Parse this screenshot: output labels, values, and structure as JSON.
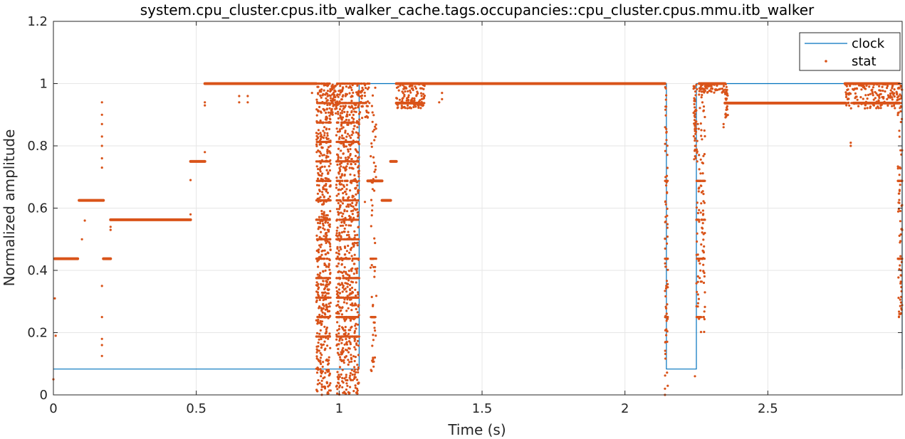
{
  "chart_data": {
    "type": "line",
    "title": "system.cpu_cluster.cpus.itb_walker_cache.tags.occupancies::cpu_cluster.cpus.mmu.itb_walker",
    "xlabel": "Time (s)",
    "ylabel": "Normalized amplitude",
    "xlim": [
      0,
      2.97
    ],
    "ylim": [
      0,
      1.2
    ],
    "xticks": [
      0,
      0.5,
      1,
      1.5,
      2,
      2.5
    ],
    "xtick_labels": [
      "0",
      "0.5",
      "1",
      "1.5",
      "2",
      "2.5"
    ],
    "yticks": [
      0,
      0.2,
      0.4,
      0.6,
      0.8,
      1,
      1.2
    ],
    "ytick_labels": [
      "0",
      "0.2",
      "0.4",
      "0.6",
      "0.8",
      "1",
      "1.2"
    ],
    "grid": true,
    "legend_position": "top-right",
    "colors": {
      "clock": "#0072bd",
      "stat": "#d95319",
      "grid": "#e6e6e6",
      "axis": "#262626"
    },
    "series": [
      {
        "name": "clock",
        "kind": "step-line",
        "x": [
          0,
          1.07,
          1.07,
          2.145,
          2.145,
          2.25,
          2.25,
          2.97,
          2.97
        ],
        "y": [
          0.083,
          0.083,
          1,
          1,
          0.083,
          0.083,
          1,
          1,
          0.083
        ]
      },
      {
        "name": "stat",
        "kind": "markers",
        "segments": [
          {
            "x0": 0.005,
            "x1": 0.085,
            "y": 0.4375
          },
          {
            "x0": 0.09,
            "x1": 0.175,
            "y": 0.625
          },
          {
            "x0": 0.175,
            "x1": 0.2,
            "y": 0.4375
          },
          {
            "x0": 0.2,
            "x1": 0.48,
            "y": 0.5625
          },
          {
            "x0": 0.48,
            "x1": 0.53,
            "y": 0.75
          },
          {
            "x0": 0.53,
            "x1": 0.92,
            "y": 1
          },
          {
            "x0": 1.2,
            "x1": 2.14,
            "y": 1
          },
          {
            "x0": 1.2,
            "x1": 1.28,
            "y": 0.9375
          },
          {
            "x0": 2.26,
            "x1": 2.35,
            "y": 1
          },
          {
            "x0": 2.35,
            "x1": 2.77,
            "y": 0.9375
          },
          {
            "x0": 2.77,
            "x1": 2.96,
            "y": 1
          },
          {
            "x0": 2.8,
            "x1": 2.96,
            "y": 0.9375
          },
          {
            "x0": 1.1,
            "x1": 1.15,
            "y": 0.6875
          },
          {
            "x0": 1.15,
            "x1": 1.18,
            "y": 0.625
          },
          {
            "x0": 1.18,
            "x1": 1.2,
            "y": 0.75
          }
        ],
        "points": [
          [
            0.0,
            0.05
          ],
          [
            0.005,
            0.31
          ],
          [
            0.008,
            0.19
          ],
          [
            0.1,
            0.5
          ],
          [
            0.11,
            0.56
          ],
          [
            0.17,
            0.94
          ],
          [
            0.17,
            0.9
          ],
          [
            0.17,
            0.87
          ],
          [
            0.17,
            0.83
          ],
          [
            0.17,
            0.8
          ],
          [
            0.17,
            0.76
          ],
          [
            0.17,
            0.73
          ],
          [
            0.17,
            0.35
          ],
          [
            0.17,
            0.25
          ],
          [
            0.17,
            0.18
          ],
          [
            0.17,
            0.16
          ],
          [
            0.17,
            0.125
          ],
          [
            0.2,
            0.53
          ],
          [
            0.2,
            0.54
          ],
          [
            0.48,
            0.58
          ],
          [
            0.48,
            0.69
          ],
          [
            0.53,
            0.78
          ],
          [
            0.53,
            0.94
          ],
          [
            0.53,
            0.93
          ],
          [
            0.65,
            0.96
          ],
          [
            0.65,
            0.94
          ],
          [
            0.68,
            0.96
          ],
          [
            0.68,
            0.94
          ],
          [
            0.905,
            0.97
          ],
          [
            1.09,
            0.62
          ],
          [
            1.35,
            0.94
          ],
          [
            1.36,
            0.97
          ],
          [
            1.36,
            0.95
          ],
          [
            2.14,
            0.02
          ],
          [
            2.14,
            0.0
          ],
          [
            2.245,
            0.06
          ],
          [
            2.345,
            0.87
          ],
          [
            2.345,
            0.86
          ],
          [
            2.79,
            0.8
          ],
          [
            2.79,
            0.81
          ],
          [
            2.96,
            0.26
          ]
        ],
        "dense_regions": [
          {
            "x0": 0.92,
            "x1": 0.97,
            "y0": 0.0,
            "y1": 1.0,
            "count": 900,
            "levels": [
              0.1875,
              0.25,
              0.3125,
              0.375,
              0.4375,
              0.5,
              0.5625,
              0.625,
              0.6875,
              0.75,
              0.8125,
              0.875,
              0.9375,
              1.0
            ]
          },
          {
            "x0": 0.99,
            "x1": 1.07,
            "y0": 0.0,
            "y1": 1.0,
            "count": 1300,
            "levels": [
              0.1875,
              0.25,
              0.3125,
              0.375,
              0.4375,
              0.5,
              0.5625,
              0.625,
              0.6875,
              0.75,
              0.8125,
              0.875,
              0.9375,
              1.0
            ]
          },
          {
            "x0": 1.11,
            "x1": 1.13,
            "y0": 0.07,
            "y1": 1.0,
            "count": 120,
            "levels": [
              0.25,
              0.4375,
              0.6875
            ]
          },
          {
            "x0": 2.14,
            "x1": 2.15,
            "y0": 0.0,
            "y1": 1.0,
            "count": 130,
            "levels": [
              0.25,
              0.4375,
              0.6875
            ]
          },
          {
            "x0": 2.24,
            "x1": 2.25,
            "y0": 0.75,
            "y1": 1.0,
            "count": 50,
            "levels": []
          },
          {
            "x0": 2.25,
            "x1": 2.28,
            "y0": 0.2,
            "y1": 1.0,
            "count": 170,
            "levels": [
              0.25,
              0.4375,
              0.5625,
              0.6875
            ]
          },
          {
            "x0": 2.955,
            "x1": 2.97,
            "y0": 0.25,
            "y1": 1.0,
            "count": 130,
            "levels": [
              0.4375,
              0.6875
            ]
          },
          {
            "x0": 1.2,
            "x1": 1.3,
            "y0": 0.92,
            "y1": 1.0,
            "count": 200,
            "levels": [
              0.9375,
              1.0
            ]
          },
          {
            "x0": 2.77,
            "x1": 2.97,
            "y0": 0.92,
            "y1": 1.0,
            "count": 250,
            "levels": [
              0.9375,
              1.0
            ]
          },
          {
            "x0": 2.35,
            "x1": 2.36,
            "y0": 0.88,
            "y1": 1.0,
            "count": 25,
            "levels": []
          },
          {
            "x0": 2.26,
            "x1": 2.35,
            "y0": 0.97,
            "y1": 1.0,
            "count": 80,
            "levels": [
              1.0
            ]
          },
          {
            "x0": 1.07,
            "x1": 1.11,
            "y0": 0.88,
            "y1": 1.0,
            "count": 60,
            "levels": [
              1.0,
              0.9375
            ]
          },
          {
            "x0": 0.97,
            "x1": 0.99,
            "y0": 0.9,
            "y1": 1.0,
            "count": 60,
            "levels": []
          }
        ]
      }
    ]
  }
}
